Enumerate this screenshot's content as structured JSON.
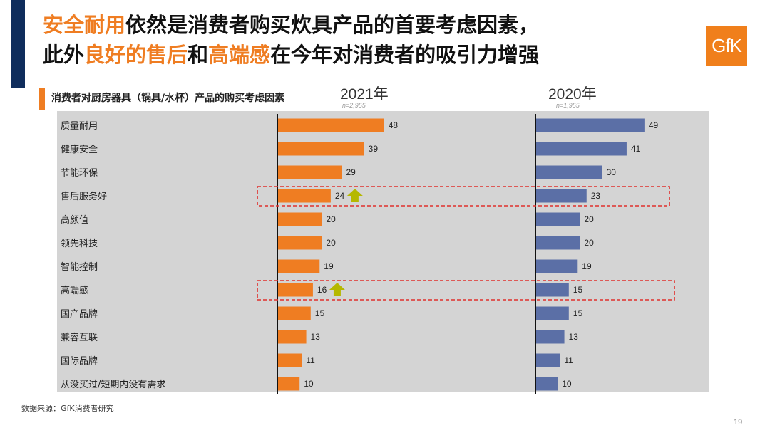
{
  "title": {
    "line1": [
      {
        "text": "安全耐用",
        "highlight": true
      },
      {
        "text": "依然是消费者购买炊具产品的首要考虑因素，",
        "highlight": false
      }
    ],
    "line2": [
      {
        "text": "此外",
        "highlight": false
      },
      {
        "text": "良好的售后",
        "highlight": true
      },
      {
        "text": "和",
        "highlight": false
      },
      {
        "text": "高端感",
        "highlight": true
      },
      {
        "text": "在今年对消费者的吸引力增强",
        "highlight": false
      }
    ]
  },
  "logo_text": "GfK",
  "subtitle": "消费者对厨房器具（锅具/水杯）产品的购买考虑因素",
  "source": "数据来源：GfK消费者研究",
  "page_number": "19",
  "colors": {
    "accent": "#ef7d22",
    "series_2021": "#ef7d22",
    "series_2020": "#5b6fa6",
    "highlight_box": "#e0302c",
    "arrow": "#b5b800",
    "plot_bg": "#d4d4d4"
  },
  "chart_data": {
    "type": "bar",
    "orientation": "horizontal",
    "categories": [
      "质量耐用",
      "健康安全",
      "节能环保",
      "售后服务好",
      "高颜值",
      "领先科技",
      "智能控制",
      "高端感",
      "国产品牌",
      "兼容互联",
      "国际品牌",
      "从没买过/短期内没有需求"
    ],
    "series": [
      {
        "name": "2021年",
        "n": "n=2,955",
        "values": [
          48,
          39,
          29,
          24,
          20,
          20,
          19,
          16,
          15,
          13,
          11,
          10
        ]
      },
      {
        "name": "2020年",
        "n": "n=1,955",
        "values": [
          49,
          41,
          30,
          23,
          20,
          20,
          19,
          15,
          15,
          13,
          11,
          10
        ]
      }
    ],
    "highlighted_categories": [
      "售后服务好",
      "高端感"
    ],
    "up_arrow_categories": [
      "售后服务好",
      "高端感"
    ]
  }
}
